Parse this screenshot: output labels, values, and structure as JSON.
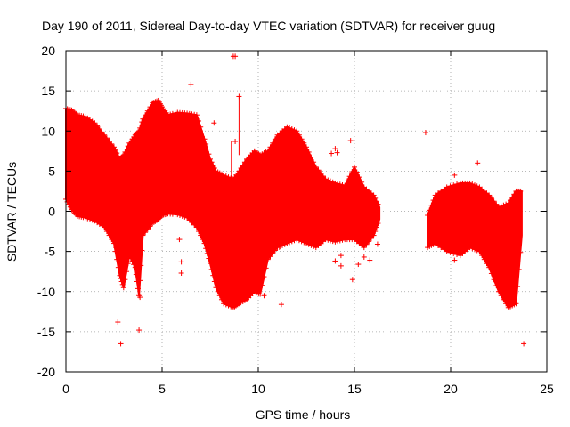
{
  "chart_data": {
    "type": "scatter",
    "title": "Day 190 of 2011, Sidereal Day-to-day VTEC variation (SDTVAR) for receiver guug",
    "xlabel": "GPS time / hours",
    "ylabel": "SDTVAR / TECUs",
    "xlim": [
      0,
      25
    ],
    "ylim": [
      -20,
      20
    ],
    "xticks": [
      0,
      5,
      10,
      15,
      20,
      25
    ],
    "yticks": [
      -20,
      -15,
      -10,
      -5,
      0,
      5,
      10,
      15,
      20
    ],
    "grid": true,
    "marker": "+",
    "color": "#ff0000",
    "series": [
      {
        "name": "SDTVAR",
        "envelope": [
          {
            "x": 0.0,
            "upper": 12.8,
            "lower": 1.5
          },
          {
            "x": 0.3,
            "upper": 12.6,
            "lower": 0.2
          },
          {
            "x": 0.6,
            "upper": 12.0,
            "lower": -0.6
          },
          {
            "x": 1.0,
            "upper": 11.8,
            "lower": -0.8
          },
          {
            "x": 1.5,
            "upper": 11.0,
            "lower": -1.2
          },
          {
            "x": 2.0,
            "upper": 9.5,
            "lower": -2.0
          },
          {
            "x": 2.5,
            "upper": 8.0,
            "lower": -4.0
          },
          {
            "x": 2.8,
            "upper": 6.5,
            "lower": -8.0
          },
          {
            "x": 3.0,
            "upper": 7.0,
            "lower": -9.5
          },
          {
            "x": 3.3,
            "upper": 8.5,
            "lower": -5.5
          },
          {
            "x": 3.6,
            "upper": 9.5,
            "lower": -7.0
          },
          {
            "x": 3.8,
            "upper": 10.0,
            "lower": -10.5
          },
          {
            "x": 4.0,
            "upper": 11.5,
            "lower": -3.0
          },
          {
            "x": 4.5,
            "upper": 13.5,
            "lower": -1.5
          },
          {
            "x": 4.8,
            "upper": 13.8,
            "lower": -1.0
          },
          {
            "x": 5.0,
            "upper": 13.0,
            "lower": -0.5
          },
          {
            "x": 5.3,
            "upper": 12.0,
            "lower": -0.3
          },
          {
            "x": 5.8,
            "upper": 12.3,
            "lower": -0.4
          },
          {
            "x": 6.3,
            "upper": 12.2,
            "lower": -0.8
          },
          {
            "x": 6.8,
            "upper": 12.0,
            "lower": -2.0
          },
          {
            "x": 7.2,
            "upper": 9.0,
            "lower": -4.0
          },
          {
            "x": 7.5,
            "upper": 6.5,
            "lower": -6.5
          },
          {
            "x": 7.8,
            "upper": 5.0,
            "lower": -9.5
          },
          {
            "x": 8.2,
            "upper": 4.5,
            "lower": -11.5
          },
          {
            "x": 8.7,
            "upper": 4.0,
            "lower": -12.0
          },
          {
            "x": 9.0,
            "upper": 5.0,
            "lower": -11.5
          },
          {
            "x": 9.4,
            "upper": 6.5,
            "lower": -11.0
          },
          {
            "x": 9.8,
            "upper": 7.5,
            "lower": -10.0
          },
          {
            "x": 10.1,
            "upper": 7.0,
            "lower": -10.3
          },
          {
            "x": 10.5,
            "upper": 7.5,
            "lower": -6.0
          },
          {
            "x": 11.0,
            "upper": 9.5,
            "lower": -4.5
          },
          {
            "x": 11.5,
            "upper": 10.5,
            "lower": -4.0
          },
          {
            "x": 12.0,
            "upper": 10.0,
            "lower": -3.5
          },
          {
            "x": 12.5,
            "upper": 8.0,
            "lower": -4.0
          },
          {
            "x": 13.0,
            "upper": 5.5,
            "lower": -4.5
          },
          {
            "x": 13.5,
            "upper": 4.0,
            "lower": -3.5
          },
          {
            "x": 14.0,
            "upper": 3.5,
            "lower": -3.8
          },
          {
            "x": 14.5,
            "upper": 3.2,
            "lower": -3.5
          },
          {
            "x": 15.0,
            "upper": 5.5,
            "lower": -3.5
          },
          {
            "x": 15.5,
            "upper": 3.0,
            "lower": -4.5
          },
          {
            "x": 16.0,
            "upper": 2.0,
            "lower": -3.0
          },
          {
            "x": 16.3,
            "upper": 0.5,
            "lower": -1.0
          }
        ],
        "envelope2": [
          {
            "x": 18.8,
            "upper": -0.5,
            "lower": -4.5
          },
          {
            "x": 19.2,
            "upper": 2.0,
            "lower": -4.0
          },
          {
            "x": 19.8,
            "upper": 3.0,
            "lower": -5.0
          },
          {
            "x": 20.5,
            "upper": 3.5,
            "lower": -5.5
          },
          {
            "x": 21.0,
            "upper": 3.5,
            "lower": -4.5
          },
          {
            "x": 21.5,
            "upper": 3.0,
            "lower": -5.0
          },
          {
            "x": 22.0,
            "upper": 2.0,
            "lower": -7.0
          },
          {
            "x": 22.5,
            "upper": 0.5,
            "lower": -10.0
          },
          {
            "x": 23.0,
            "upper": 1.0,
            "lower": -12.0
          },
          {
            "x": 23.4,
            "upper": 2.5,
            "lower": -11.5
          },
          {
            "x": 23.7,
            "upper": 2.5,
            "lower": -3.0
          }
        ],
        "outliers": [
          {
            "x": 2.6,
            "y": -4.5
          },
          {
            "x": 2.7,
            "y": -13.8
          },
          {
            "x": 2.85,
            "y": -16.5
          },
          {
            "x": 3.8,
            "y": -14.8
          },
          {
            "x": 3.85,
            "y": -10.7
          },
          {
            "x": 5.9,
            "y": -3.5
          },
          {
            "x": 6.0,
            "y": -6.3
          },
          {
            "x": 6.0,
            "y": -7.7
          },
          {
            "x": 6.5,
            "y": 15.8
          },
          {
            "x": 7.7,
            "y": 11.0
          },
          {
            "x": 8.7,
            "y": 19.3
          },
          {
            "x": 8.8,
            "y": 19.3
          },
          {
            "x": 9.0,
            "y": 14.3
          },
          {
            "x": 8.8,
            "y": 8.7
          },
          {
            "x": 10.3,
            "y": -10.5
          },
          {
            "x": 11.2,
            "y": -11.6
          },
          {
            "x": 13.8,
            "y": 7.2
          },
          {
            "x": 14.1,
            "y": 7.3
          },
          {
            "x": 14.0,
            "y": 7.8
          },
          {
            "x": 14.0,
            "y": -6.2
          },
          {
            "x": 14.3,
            "y": -5.5
          },
          {
            "x": 14.3,
            "y": -6.8
          },
          {
            "x": 14.9,
            "y": -8.5
          },
          {
            "x": 14.8,
            "y": 8.8
          },
          {
            "x": 15.2,
            "y": -6.6
          },
          {
            "x": 15.5,
            "y": -5.7
          },
          {
            "x": 15.8,
            "y": -6.1
          },
          {
            "x": 16.2,
            "y": -4.1
          },
          {
            "x": 18.7,
            "y": 9.8
          },
          {
            "x": 20.2,
            "y": 4.5
          },
          {
            "x": 20.2,
            "y": -6.1
          },
          {
            "x": 21.4,
            "y": 6.0
          },
          {
            "x": 23.8,
            "y": -16.5
          }
        ]
      }
    ]
  }
}
